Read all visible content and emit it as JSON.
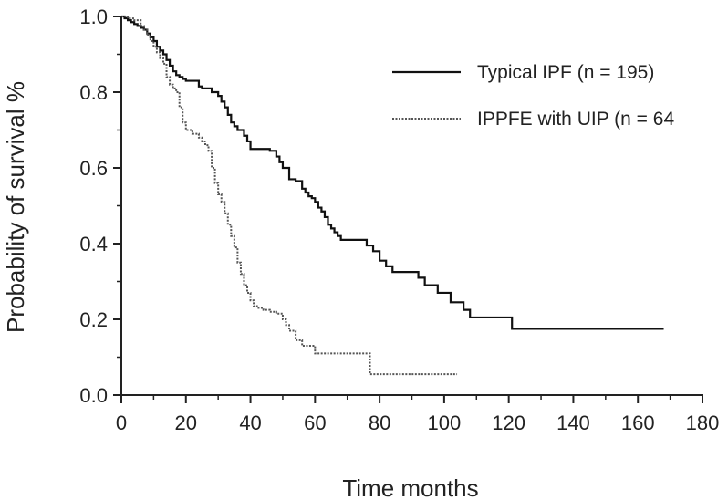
{
  "chart_data": {
    "type": "line",
    "title": "",
    "xlabel": "Time months",
    "ylabel": "Probability of survival %",
    "xlim": [
      0,
      180
    ],
    "ylim": [
      0,
      1.0
    ],
    "xticks": [
      "0",
      "20",
      "40",
      "60",
      "80",
      "100",
      "120",
      "140",
      "160",
      "180"
    ],
    "yticks": [
      "0.0",
      "0.2",
      "0.4",
      "0.6",
      "0.8",
      "1.0"
    ],
    "grid": false,
    "legend_position": "top-right",
    "series": [
      {
        "name": "Typical IPF (n = 195)",
        "style": "solid",
        "color": "#111111",
        "x": [
          0,
          1,
          2,
          3,
          4,
          5,
          6,
          7,
          8,
          9,
          10,
          11,
          12,
          13,
          14,
          15,
          16,
          17,
          18,
          19,
          20,
          22,
          24,
          25,
          26,
          28,
          30,
          31,
          32,
          33,
          34,
          35,
          36,
          37,
          38,
          39,
          40,
          42,
          44,
          46,
          48,
          49,
          50,
          52,
          54,
          55,
          56,
          57,
          58,
          59,
          60,
          61,
          62,
          63,
          64,
          65,
          66,
          67,
          68,
          70,
          72,
          74,
          76,
          78,
          80,
          82,
          84,
          86,
          88,
          90,
          92,
          94,
          96,
          98,
          100,
          102,
          104,
          106,
          108,
          110,
          112,
          114,
          116,
          118,
          120,
          121,
          122,
          130,
          140,
          150,
          160,
          168
        ],
        "y": [
          1.0,
          0.995,
          0.99,
          0.985,
          0.98,
          0.975,
          0.97,
          0.965,
          0.955,
          0.945,
          0.935,
          0.92,
          0.91,
          0.9,
          0.885,
          0.87,
          0.855,
          0.845,
          0.84,
          0.835,
          0.83,
          0.83,
          0.815,
          0.81,
          0.81,
          0.8,
          0.79,
          0.775,
          0.76,
          0.74,
          0.72,
          0.71,
          0.7,
          0.7,
          0.685,
          0.67,
          0.65,
          0.65,
          0.65,
          0.645,
          0.63,
          0.615,
          0.6,
          0.57,
          0.565,
          0.565,
          0.545,
          0.535,
          0.525,
          0.52,
          0.51,
          0.495,
          0.485,
          0.47,
          0.45,
          0.44,
          0.43,
          0.42,
          0.41,
          0.41,
          0.41,
          0.41,
          0.395,
          0.38,
          0.355,
          0.34,
          0.325,
          0.325,
          0.325,
          0.325,
          0.31,
          0.29,
          0.29,
          0.27,
          0.27,
          0.245,
          0.245,
          0.225,
          0.205,
          0.205,
          0.205,
          0.205,
          0.205,
          0.205,
          0.205,
          0.175,
          0.175,
          0.175,
          0.175,
          0.175,
          0.175,
          0.175
        ]
      },
      {
        "name": "IPPFE with UIP (n = 64",
        "style": "dotted",
        "color": "#555555",
        "x": [
          0,
          2,
          4,
          6,
          7,
          8,
          9,
          10,
          11,
          12,
          13,
          14,
          15,
          16,
          17,
          18,
          19,
          20,
          22,
          24,
          25,
          26,
          27,
          28,
          29,
          30,
          31,
          32,
          33,
          34,
          35,
          36,
          37,
          38,
          39,
          40,
          41,
          42,
          44,
          46,
          48,
          50,
          51,
          52,
          54,
          56,
          58,
          60,
          64,
          68,
          72,
          76,
          77,
          80,
          90,
          100,
          104
        ],
        "y": [
          1.0,
          0.995,
          0.99,
          0.975,
          0.965,
          0.95,
          0.935,
          0.92,
          0.905,
          0.89,
          0.875,
          0.84,
          0.82,
          0.81,
          0.8,
          0.76,
          0.72,
          0.7,
          0.69,
          0.68,
          0.67,
          0.66,
          0.645,
          0.6,
          0.56,
          0.53,
          0.51,
          0.48,
          0.45,
          0.42,
          0.39,
          0.35,
          0.32,
          0.29,
          0.27,
          0.25,
          0.235,
          0.23,
          0.225,
          0.22,
          0.215,
          0.2,
          0.185,
          0.17,
          0.145,
          0.13,
          0.13,
          0.11,
          0.11,
          0.11,
          0.11,
          0.11,
          0.055,
          0.055,
          0.055,
          0.055,
          0.055
        ]
      }
    ]
  }
}
